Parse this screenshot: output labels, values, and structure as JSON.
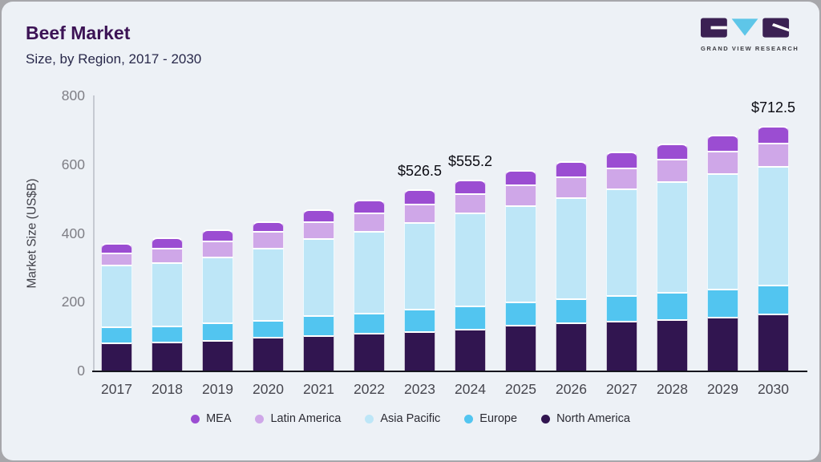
{
  "header": {
    "title": "Beef Market",
    "subtitle": "Size, by Region, 2017 - 2030"
  },
  "logo": {
    "caption": "GRAND VIEW RESEARCH",
    "block_color": "#3b2153",
    "triangle_color": "#5ec6e8"
  },
  "colors": {
    "card_background": "#edf1f6",
    "frame": "#a7a7ab",
    "axis_line": "#16161e",
    "title_text": "#3c1355",
    "subtitle_text": "#28284a"
  },
  "chart_data": {
    "type": "bar",
    "stacked": true,
    "title": "Beef Market Size, by Region, 2017 - 2030",
    "xlabel": "",
    "ylabel": "Market Size (US$B)",
    "ylim": [
      0,
      800
    ],
    "y_ticks": [
      0,
      200,
      400,
      600,
      800
    ],
    "grid": false,
    "legend_position": "bottom",
    "categories": [
      "2017",
      "2018",
      "2019",
      "2020",
      "2021",
      "2022",
      "2023",
      "2024",
      "2025",
      "2026",
      "2027",
      "2028",
      "2029",
      "2030"
    ],
    "series": [
      {
        "name": "North America",
        "color": "#311550",
        "values": [
          81,
          84,
          89,
          97,
          102,
          110,
          114,
          121,
          133,
          141,
          145,
          150,
          156,
          166
        ]
      },
      {
        "name": "Europe",
        "color": "#52c5f0",
        "values": [
          47,
          47,
          50,
          50,
          60,
          58,
          66,
          68,
          68,
          70,
          75,
          78,
          82,
          83
        ]
      },
      {
        "name": "Asia Pacific",
        "color": "#bde6f7",
        "values": [
          179,
          184,
          193,
          210,
          224,
          239,
          251,
          270,
          279,
          293,
          309,
          323,
          336,
          345
        ]
      },
      {
        "name": "Latin America",
        "color": "#cfa7e8",
        "values": [
          35,
          42,
          45,
          48,
          48,
          53,
          54.5,
          56,
          61,
          60,
          61,
          64,
          65,
          69
        ]
      },
      {
        "name": "MEA",
        "color": "#9b4dd2",
        "values": [
          30,
          31,
          33,
          30,
          34,
          37,
          41,
          40.2,
          42,
          46,
          48,
          46,
          47,
          49.5
        ]
      }
    ],
    "legend_order": [
      "MEA",
      "Latin America",
      "Asia Pacific",
      "Europe",
      "North America"
    ],
    "annotations": [
      {
        "category": "2023",
        "label": "$526.5"
      },
      {
        "category": "2024",
        "label": "$555.2"
      },
      {
        "category": "2030",
        "label": "$712.5"
      }
    ]
  }
}
